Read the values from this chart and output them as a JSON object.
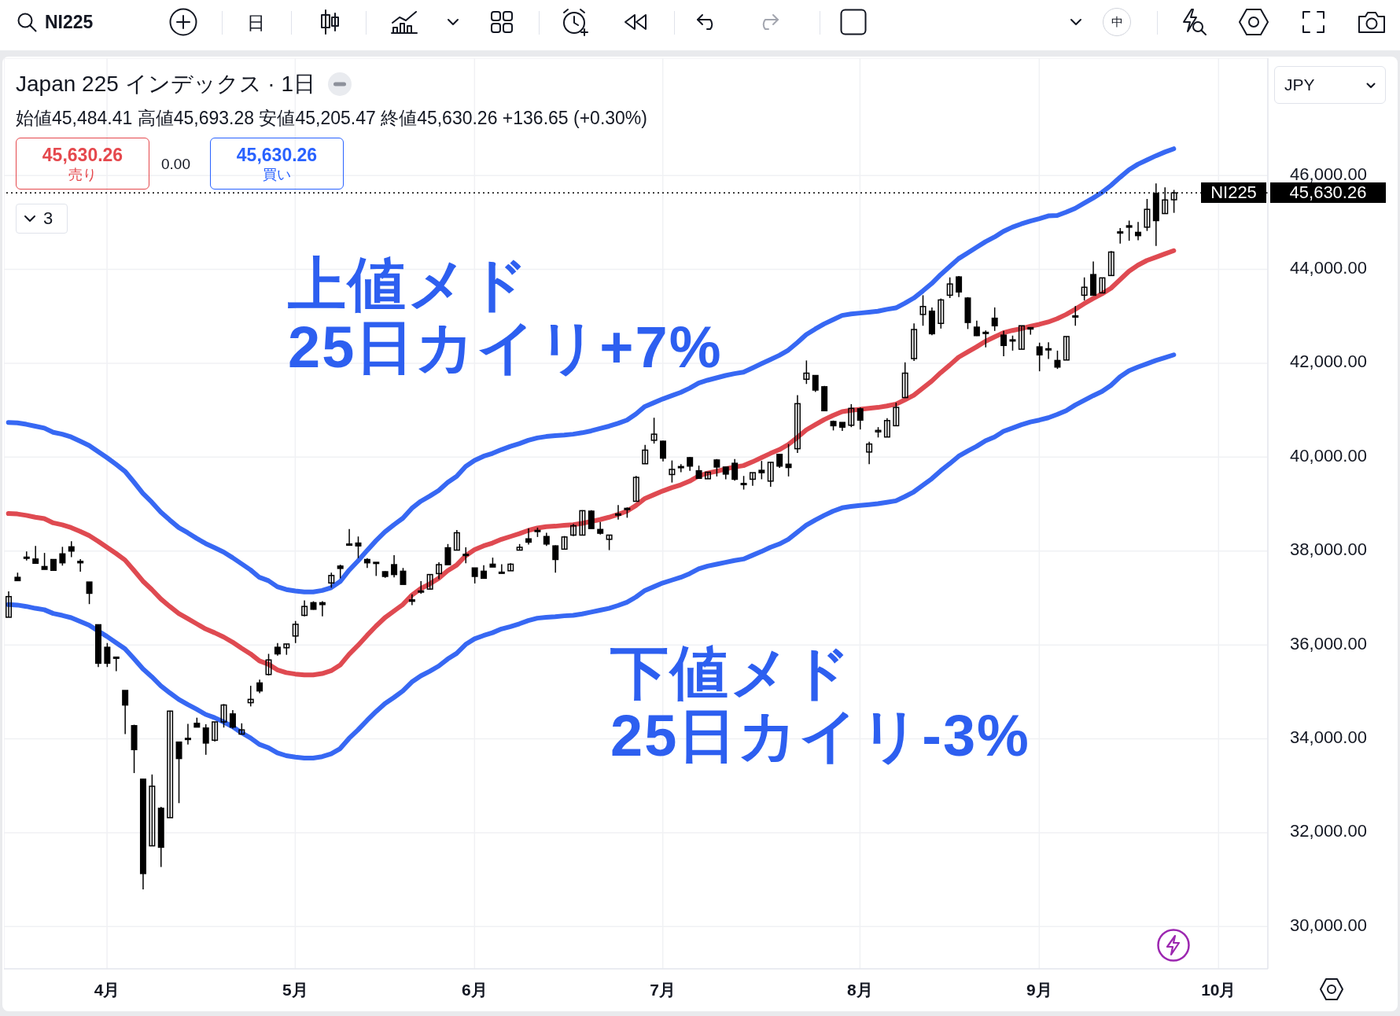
{
  "chart_data": {
    "type": "candlestick",
    "title": "Japan 225 インデックス · 1日",
    "subtitle": "始値45,484.41 高値45,693.28 安値45,205.47 終値45,630.26 +136.65 (+0.30%)",
    "categories": [
      null,
      null,
      null,
      null,
      null,
      null,
      null,
      null,
      null,
      null,
      null,
      "4月",
      null,
      null,
      null,
      null,
      null,
      null,
      null,
      null,
      null,
      null,
      null,
      null,
      null,
      null,
      null,
      null,
      null,
      null,
      null,
      null,
      "5月",
      null,
      null,
      null,
      null,
      null,
      null,
      null,
      null,
      null,
      null,
      null,
      null,
      null,
      null,
      null,
      null,
      null,
      null,
      null,
      "6月",
      null,
      null,
      null,
      null,
      null,
      null,
      null,
      null,
      null,
      null,
      null,
      null,
      null,
      null,
      null,
      null,
      null,
      null,
      null,
      null,
      "7月",
      null,
      null,
      null,
      null,
      null,
      null,
      null,
      null,
      null,
      null,
      null,
      null,
      null,
      null,
      null,
      null,
      null,
      null,
      null,
      null,
      null,
      "8月",
      null,
      null,
      null,
      null,
      null,
      null,
      null,
      null,
      null,
      null,
      null,
      null,
      null,
      null,
      null,
      null,
      null,
      null,
      null,
      "9月",
      null,
      null,
      null,
      null,
      null,
      null,
      null,
      null,
      null,
      null,
      null,
      null,
      null,
      null,
      null,
      null,
      null,
      null,
      null,
      "10月",
      null,
      null,
      null,
      null,
      null
    ],
    "color": "#000000",
    "ohlc": [
      [
        36590,
        37140,
        36590,
        37030
      ],
      [
        37440,
        37540,
        37370,
        37370
      ],
      [
        37870,
        37990,
        37800,
        37860
      ],
      [
        37830,
        38110,
        37740,
        37740
      ],
      [
        37670,
        37960,
        37610,
        37610
      ],
      [
        37820,
        37820,
        37590,
        37590
      ],
      [
        37940,
        38090,
        37690,
        37750
      ],
      [
        38090,
        38210,
        37870,
        38000
      ],
      [
        37780,
        37830,
        37560,
        37750
      ],
      [
        37340,
        37340,
        36870,
        37100
      ],
      [
        36430,
        36430,
        35530,
        35610
      ],
      [
        35950,
        36040,
        35530,
        35610
      ],
      [
        35740,
        35750,
        35440,
        35730
      ],
      [
        35030,
        35030,
        34100,
        34720
      ],
      [
        34280,
        34300,
        33270,
        33770
      ],
      [
        33140,
        33140,
        30790,
        31130
      ],
      [
        31720,
        33240,
        31720,
        32990
      ],
      [
        32520,
        32550,
        31270,
        31690
      ],
      [
        32320,
        34600,
        32320,
        34590
      ],
      [
        33930,
        33940,
        32630,
        33580
      ],
      [
        34000,
        34320,
        33880,
        34010
      ],
      [
        34330,
        34450,
        34250,
        34250
      ],
      [
        34230,
        34310,
        33660,
        33910
      ],
      [
        33970,
        34360,
        33940,
        34360
      ],
      [
        34360,
        34740,
        34240,
        34720
      ],
      [
        34530,
        34610,
        34220,
        34250
      ],
      [
        34100,
        34330,
        34100,
        34190
      ],
      [
        34770,
        35130,
        34690,
        34840
      ],
      [
        35190,
        35260,
        34970,
        35020
      ],
      [
        35370,
        35810,
        35350,
        35680
      ],
      [
        35950,
        36040,
        35770,
        35810
      ],
      [
        35940,
        36020,
        35790,
        36020
      ],
      [
        36190,
        36510,
        36040,
        36440
      ],
      [
        36630,
        36950,
        36610,
        36820
      ],
      [
        36900,
        36930,
        36750,
        36760
      ],
      [
        36900,
        36930,
        36610,
        36860
      ],
      [
        37320,
        37540,
        37220,
        37480
      ],
      [
        37680,
        37710,
        37420,
        37630
      ],
      [
        38150,
        38470,
        38130,
        38130
      ],
      [
        38170,
        38310,
        37850,
        38110
      ],
      [
        37820,
        37850,
        37640,
        37750
      ],
      [
        37760,
        37760,
        37470,
        37740
      ],
      [
        37560,
        37570,
        37430,
        37460
      ],
      [
        37710,
        37910,
        37440,
        37500
      ],
      [
        37570,
        37640,
        37290,
        37290
      ],
      [
        36960,
        37080,
        36850,
        36930
      ],
      [
        37150,
        37360,
        37090,
        37130
      ],
      [
        37190,
        37500,
        37180,
        37500
      ],
      [
        37520,
        37760,
        37400,
        37710
      ],
      [
        38070,
        38150,
        37710,
        37710
      ],
      [
        38020,
        38450,
        38020,
        38390
      ],
      [
        37930,
        38080,
        37740,
        37910
      ],
      [
        37640,
        37640,
        37310,
        37460
      ],
      [
        37570,
        37700,
        37420,
        37420
      ],
      [
        37720,
        37860,
        37660,
        37660
      ],
      [
        37550,
        37720,
        37540,
        37540
      ],
      [
        37580,
        37740,
        37580,
        37720
      ],
      [
        38020,
        38150,
        38020,
        38080
      ],
      [
        38260,
        38480,
        38140,
        38190
      ],
      [
        38440,
        38500,
        38300,
        38420
      ],
      [
        38310,
        38390,
        38110,
        38150
      ],
      [
        38110,
        38120,
        37540,
        37820
      ],
      [
        38040,
        38320,
        38040,
        38300
      ],
      [
        38340,
        38580,
        38320,
        38540
      ],
      [
        38340,
        38870,
        38340,
        38860
      ],
      [
        38850,
        38870,
        38480,
        38480
      ],
      [
        38460,
        38620,
        38350,
        38380
      ],
      [
        38250,
        38340,
        38020,
        38340
      ],
      [
        38770,
        38980,
        38670,
        38790
      ],
      [
        38910,
        38930,
        38710,
        38900
      ],
      [
        39060,
        39600,
        39060,
        39570
      ],
      [
        39860,
        40260,
        39860,
        40150
      ],
      [
        40360,
        40840,
        40290,
        40490
      ],
      [
        40340,
        40350,
        39910,
        39980
      ],
      [
        39630,
        39930,
        39460,
        39740
      ],
      [
        39800,
        39850,
        39680,
        39790
      ],
      [
        39990,
        40000,
        39710,
        39810
      ],
      [
        39710,
        39820,
        39540,
        39550
      ],
      [
        39540,
        39680,
        39540,
        39680
      ],
      [
        39940,
        39960,
        39590,
        39790
      ],
      [
        39790,
        39790,
        39530,
        39640
      ],
      [
        39870,
        39960,
        39500,
        39530
      ],
      [
        39440,
        39600,
        39310,
        39420
      ],
      [
        39530,
        39670,
        39390,
        39670
      ],
      [
        39720,
        39920,
        39530,
        39670
      ],
      [
        39490,
        39890,
        39370,
        39890
      ],
      [
        40060,
        40060,
        39770,
        39810
      ],
      [
        39850,
        40280,
        39590,
        39780
      ],
      [
        40180,
        41320,
        40090,
        41140
      ],
      [
        41660,
        42060,
        41560,
        41790
      ],
      [
        41740,
        41740,
        41390,
        41430
      ],
      [
        41500,
        41520,
        40990,
        40990
      ],
      [
        40760,
        40780,
        40570,
        40670
      ],
      [
        40740,
        40740,
        40560,
        40640
      ],
      [
        40680,
        41130,
        40640,
        41040
      ],
      [
        41030,
        41060,
        40590,
        40790
      ],
      [
        40110,
        40330,
        39850,
        40280
      ],
      [
        40540,
        40640,
        40420,
        40570
      ],
      [
        40430,
        40830,
        40430,
        40780
      ],
      [
        40670,
        41160,
        40670,
        41060
      ],
      [
        41270,
        42020,
        41260,
        41790
      ],
      [
        42100,
        42850,
        42050,
        42720
      ],
      [
        43040,
        43450,
        42800,
        43210
      ],
      [
        43110,
        43190,
        42600,
        42630
      ],
      [
        42850,
        43380,
        42740,
        43350
      ],
      [
        43450,
        43830,
        43390,
        43690
      ],
      [
        43840,
        43860,
        43410,
        43520
      ],
      [
        43390,
        43410,
        42730,
        42870
      ],
      [
        42770,
        42910,
        42580,
        42590
      ],
      [
        42640,
        42700,
        42340,
        42660
      ],
      [
        42960,
        43190,
        42690,
        42800
      ],
      [
        42600,
        42690,
        42150,
        42380
      ],
      [
        42500,
        42590,
        42270,
        42480
      ],
      [
        42300,
        42800,
        42300,
        42800
      ],
      [
        42760,
        42770,
        42610,
        42730
      ],
      [
        42350,
        42440,
        41830,
        42180
      ],
      [
        42300,
        42450,
        42090,
        42310
      ],
      [
        42060,
        42270,
        41880,
        41920
      ],
      [
        42070,
        42570,
        42070,
        42570
      ],
      [
        42990,
        43220,
        42800,
        43010
      ],
      [
        43450,
        43830,
        43340,
        43620
      ],
      [
        43890,
        44170,
        43450,
        43450
      ],
      [
        43500,
        43820,
        43500,
        43820
      ],
      [
        43870,
        44390,
        43870,
        44370
      ],
      [
        44800,
        44880,
        44550,
        44780
      ],
      [
        44930,
        45040,
        44610,
        44900
      ],
      [
        44790,
        45010,
        44620,
        44720
      ],
      [
        44900,
        45500,
        44820,
        45280
      ],
      [
        45620,
        45830,
        44500,
        45040
      ],
      [
        45190,
        45750,
        45190,
        45480
      ],
      [
        45484.41,
        45693.28,
        45205.47,
        45630.26
      ],
      null,
      null,
      null,
      null,
      null,
      null,
      null,
      null,
      null,
      null
    ],
    "series": [
      {
        "type": "line",
        "color": "#3768f3",
        "values": [
          40740,
          40730,
          40700,
          40660,
          40620,
          40530,
          40490,
          40430,
          40340,
          40250,
          40120,
          39990,
          39850,
          39700,
          39470,
          39230,
          39040,
          38830,
          38660,
          38500,
          38390,
          38270,
          38160,
          38070,
          37980,
          37860,
          37730,
          37600,
          37440,
          37370,
          37240,
          37180,
          37150,
          37130,
          37130,
          37160,
          37220,
          37350,
          37590,
          37790,
          38010,
          38220,
          38410,
          38560,
          38700,
          38910,
          39060,
          39170,
          39290,
          39460,
          39590,
          39800,
          39930,
          40020,
          40080,
          40160,
          40230,
          40290,
          40360,
          40410,
          40440,
          40460,
          40470,
          40490,
          40520,
          40560,
          40610,
          40660,
          40720,
          40790,
          40920,
          41080,
          41160,
          41240,
          41310,
          41380,
          41470,
          41580,
          41640,
          41690,
          41740,
          41780,
          41810,
          41900,
          41990,
          42080,
          42170,
          42280,
          42440,
          42610,
          42730,
          42840,
          42930,
          43020,
          43050,
          43070,
          43090,
          43110,
          43150,
          43180,
          43280,
          43390,
          43540,
          43700,
          43890,
          44060,
          44230,
          44350,
          44470,
          44590,
          44690,
          44810,
          44900,
          44970,
          45030,
          45080,
          45140,
          45150,
          45220,
          45300,
          45410,
          45520,
          45640,
          45790,
          45960,
          46120,
          46240,
          46330,
          46420,
          46500,
          46570,
          null,
          null,
          null,
          null,
          null,
          null,
          null,
          null,
          null,
          null
        ]
      },
      {
        "type": "line",
        "color": "#df4a51",
        "values": [
          38800,
          38790,
          38760,
          38720,
          38690,
          38600,
          38560,
          38500,
          38420,
          38330,
          38210,
          38080,
          37950,
          37810,
          37590,
          37360,
          37180,
          36980,
          36820,
          36670,
          36560,
          36450,
          36340,
          36260,
          36170,
          36060,
          35930,
          35810,
          35660,
          35590,
          35470,
          35410,
          35380,
          35360,
          35360,
          35390,
          35450,
          35570,
          35800,
          35990,
          36200,
          36400,
          36580,
          36720,
          36860,
          37060,
          37200,
          37300,
          37420,
          37580,
          37700,
          37900,
          38030,
          38110,
          38170,
          38250,
          38310,
          38370,
          38440,
          38490,
          38520,
          38530,
          38550,
          38560,
          38590,
          38630,
          38670,
          38720,
          38780,
          38850,
          38970,
          39120,
          39200,
          39280,
          39350,
          39410,
          39490,
          39600,
          39660,
          39700,
          39750,
          39790,
          39820,
          39900,
          39990,
          40080,
          40160,
          40270,
          40420,
          40580,
          40690,
          40800,
          40890,
          40970,
          41000,
          41020,
          41040,
          41060,
          41090,
          41130,
          41220,
          41320,
          41470,
          41620,
          41800,
          41960,
          42130,
          42240,
          42350,
          42470,
          42560,
          42650,
          42700,
          42740,
          42790,
          42830,
          42880,
          42950,
          43040,
          43150,
          43270,
          43380,
          43480,
          43600,
          43780,
          43960,
          44090,
          44190,
          44260,
          44330,
          44400,
          null,
          null,
          null,
          null,
          null,
          null,
          null,
          null,
          null,
          null
        ]
      },
      {
        "type": "line",
        "color": "#3768f3",
        "values": [
          36860,
          36850,
          36820,
          36780,
          36750,
          36670,
          36630,
          36580,
          36500,
          36420,
          36300,
          36180,
          36050,
          35920,
          35710,
          35490,
          35320,
          35130,
          34980,
          34840,
          34730,
          34630,
          34520,
          34450,
          34360,
          34260,
          34130,
          34020,
          33880,
          33810,
          33700,
          33640,
          33610,
          33590,
          33590,
          33620,
          33680,
          33790,
          34010,
          34190,
          34390,
          34580,
          34750,
          34880,
          35020,
          35210,
          35340,
          35440,
          35550,
          35700,
          35820,
          36010,
          36130,
          36200,
          36260,
          36340,
          36390,
          36450,
          36520,
          36570,
          36590,
          36600,
          36620,
          36630,
          36660,
          36700,
          36740,
          36780,
          36840,
          36910,
          37020,
          37160,
          37240,
          37320,
          37380,
          37440,
          37520,
          37620,
          37680,
          37720,
          37760,
          37800,
          37830,
          37910,
          37990,
          38080,
          38150,
          38250,
          38400,
          38550,
          38660,
          38760,
          38850,
          38920,
          38950,
          38970,
          38990,
          39010,
          39040,
          39070,
          39160,
          39260,
          39400,
          39540,
          39710,
          39860,
          40020,
          40130,
          40230,
          40350,
          40430,
          40550,
          40620,
          40690,
          40750,
          40790,
          40840,
          40910,
          40990,
          41110,
          41210,
          41310,
          41400,
          41530,
          41710,
          41840,
          41920,
          41990,
          42060,
          42120,
          42180,
          null,
          null,
          null,
          null,
          null,
          null,
          null,
          null,
          null,
          null
        ]
      }
    ],
    "line_style": "solid",
    "ylim": [
      29100,
      48500
    ],
    "yticks": [
      {
        "value": 30000,
        "label": "30,000.00"
      },
      {
        "value": 32000,
        "label": "32,000.00"
      },
      {
        "value": 34000,
        "label": "34,000.00"
      },
      {
        "value": 36000,
        "label": "36,000.00"
      },
      {
        "value": 38000,
        "label": "38,000.00"
      },
      {
        "value": 40000,
        "label": "40,000.00"
      },
      {
        "value": 42000,
        "label": "42,000.00"
      },
      {
        "value": 44000,
        "label": "44,000.00"
      },
      {
        "value": 46000,
        "label": "46,000.00"
      }
    ],
    "grid": true,
    "ref_lines": [
      {
        "axis": "y",
        "value": 45630.26,
        "label": "45,630.26",
        "color": "#000000",
        "line_style": "dotted"
      }
    ],
    "annotations": [
      "上値メド",
      "25日カイリ+7%",
      "下値メド",
      "25日カイリ-3%",
      "45,630.26",
      "売り",
      "0.00",
      "45,630.26",
      "買い",
      "3",
      "NI225",
      "日",
      "中",
      "JPY",
      {
        "text": "NI225",
        "y": 45630.26
      }
    ]
  }
}
